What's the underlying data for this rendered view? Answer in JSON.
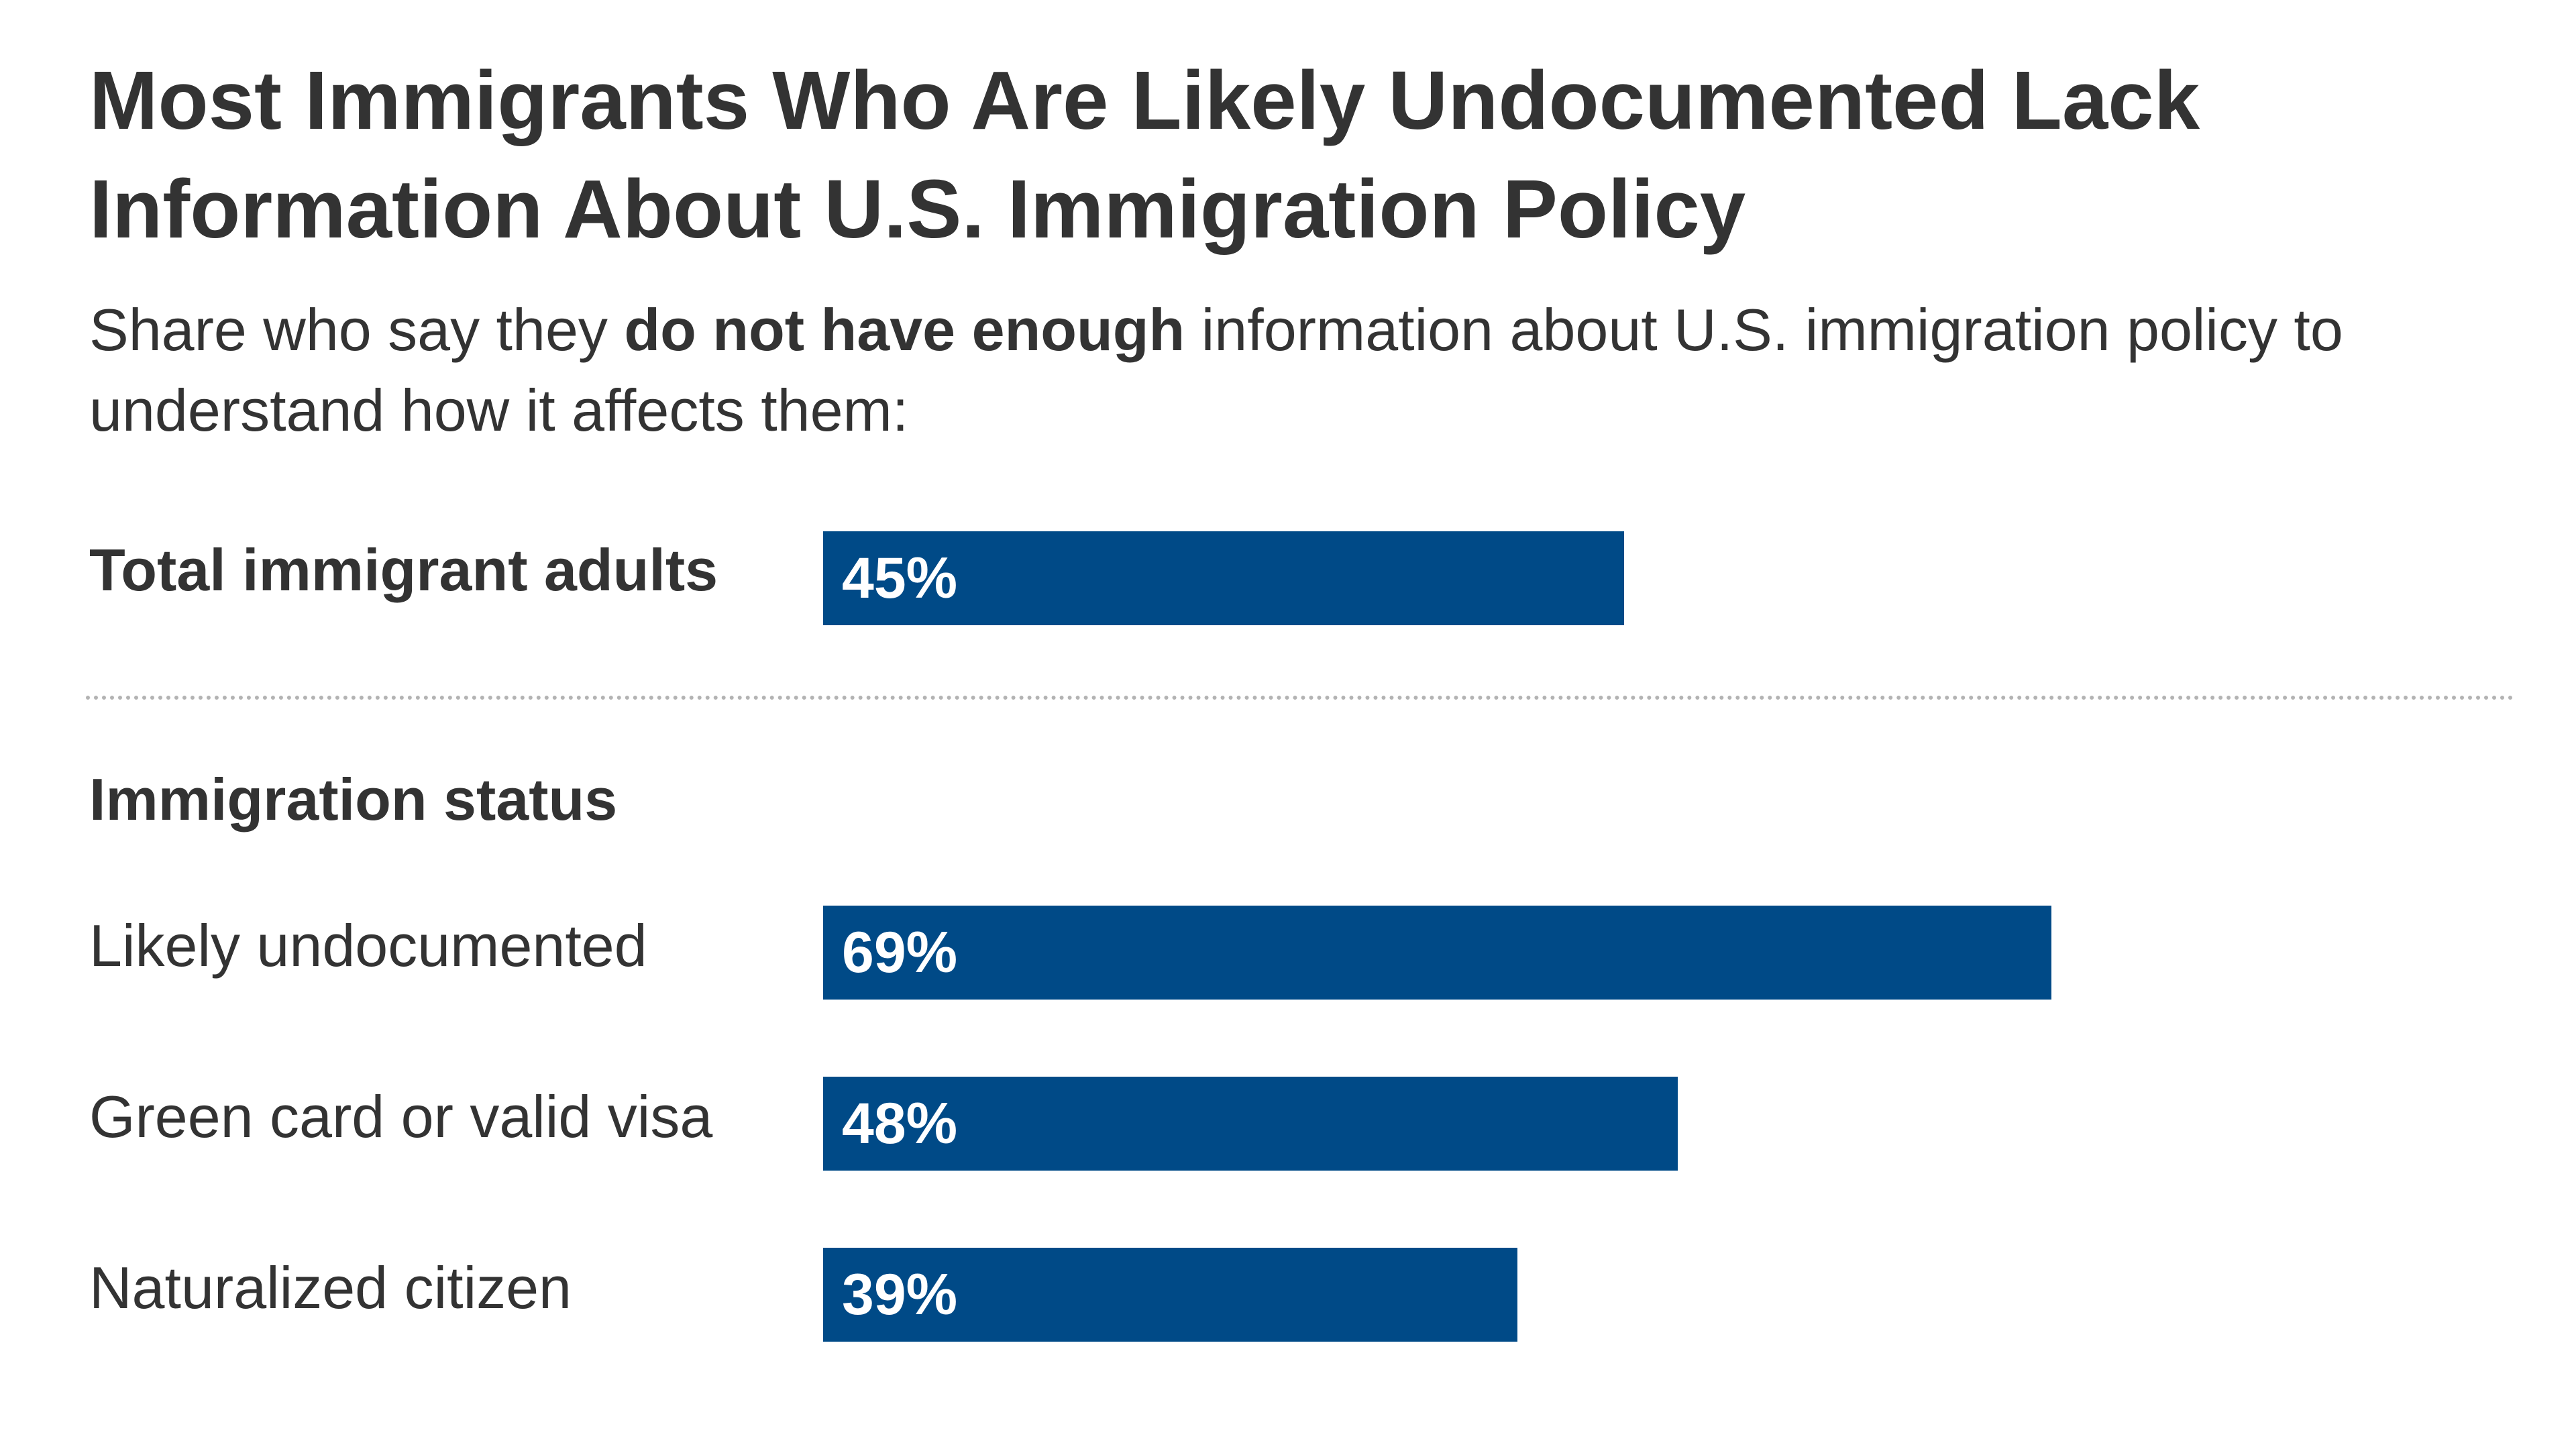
{
  "chart_data": {
    "type": "bar",
    "orientation": "horizontal",
    "title": "Most Immigrants Who Are Likely Undocumented Lack Information About U.S. Immigration Policy",
    "subtitle": {
      "before": "Share who say they ",
      "emphasis": "do not have enough",
      "after": " information about U.S. immigration policy to understand how it affects them:"
    },
    "total": {
      "label": "Total immigrant adults",
      "value": 45,
      "value_label": "45%"
    },
    "group_heading": "Immigration status",
    "categories": [
      "Likely undocumented",
      "Green card or valid visa",
      "Naturalized citizen"
    ],
    "values": [
      69,
      48,
      39
    ],
    "value_labels": [
      "69%",
      "48%",
      "39%"
    ],
    "xlim": [
      0,
      100
    ],
    "unit": "%",
    "grid": false,
    "bar_color": "#004a87"
  }
}
